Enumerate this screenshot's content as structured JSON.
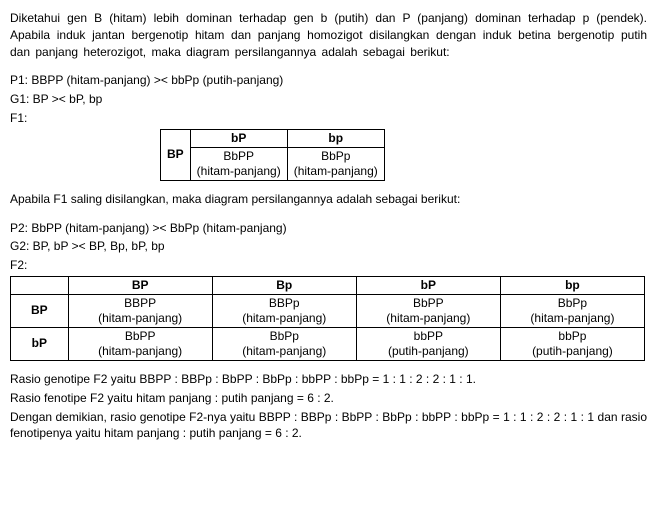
{
  "para_intro": "Diketahui gen B (hitam) lebih dominan terhadap gen b (putih) dan P (panjang) dominan terhadap p (pendek). Apabila induk jantan bergenotip hitam dan panjang homozigot disilangkan dengan induk betina bergenotip putih dan panjang heterozigot, maka diagram persilangannya adalah sebagai berikut:",
  "p1_line": "P1: BBPP (hitam-panjang) >< bbPp (putih-panjang)",
  "g1_line": "G1: BP >< bP, bp",
  "f1_label": "F1:",
  "t1": {
    "row_hdr": "BP",
    "cols": [
      "bP",
      "bp"
    ],
    "cells": [
      {
        "g": "BbPP",
        "ph": "(hitam-panjang)"
      },
      {
        "g": "BbPp",
        "ph": "(hitam-panjang)"
      }
    ]
  },
  "para_mid": "Apabila F1 saling disilangkan, maka diagram persilangannya adalah sebagai berikut:",
  "p2_line": "P2: BbPP (hitam-panjang) >< BbPp (hitam-panjang)",
  "g2_line": "G2: BP, bP >< BP, Bp, bP, bp",
  "f2_label": "F2:",
  "t2": {
    "cols": [
      "BP",
      "Bp",
      "bP",
      "bp"
    ],
    "rows": [
      {
        "hdr": "BP",
        "cells": [
          {
            "g": "BBPP",
            "ph": "(hitam-panjang)"
          },
          {
            "g": "BBPp",
            "ph": "(hitam-panjang)"
          },
          {
            "g": "BbPP",
            "ph": "(hitam-panjang)"
          },
          {
            "g": "BbPp",
            "ph": "(hitam-panjang)"
          }
        ]
      },
      {
        "hdr": "bP",
        "cells": [
          {
            "g": "BbPP",
            "ph": "(hitam-panjang)"
          },
          {
            "g": "BbPp",
            "ph": "(hitam-panjang)"
          },
          {
            "g": "bbPP",
            "ph": "(putih-panjang)"
          },
          {
            "g": "bbPp",
            "ph": "(putih-panjang)"
          }
        ]
      }
    ]
  },
  "r_geno": "Rasio genotipe F2 yaitu BBPP : BBPp : BbPP : BbPp : bbPP : bbPp = 1 : 1 : 2 : 2 : 1 : 1.",
  "r_feno": "Rasio fenotipe F2 yaitu hitam panjang : putih panjang = 6 : 2.",
  "para_concl": "Dengan demikian, rasio genotipe F2-nya yaitu BBPP : BBPp : BbPP : BbPp : bbPP : bbPp = 1 : 1 : 2 : 2 : 1 : 1 dan rasio fenotipenya yaitu hitam panjang : putih panjang = 6 : 2."
}
